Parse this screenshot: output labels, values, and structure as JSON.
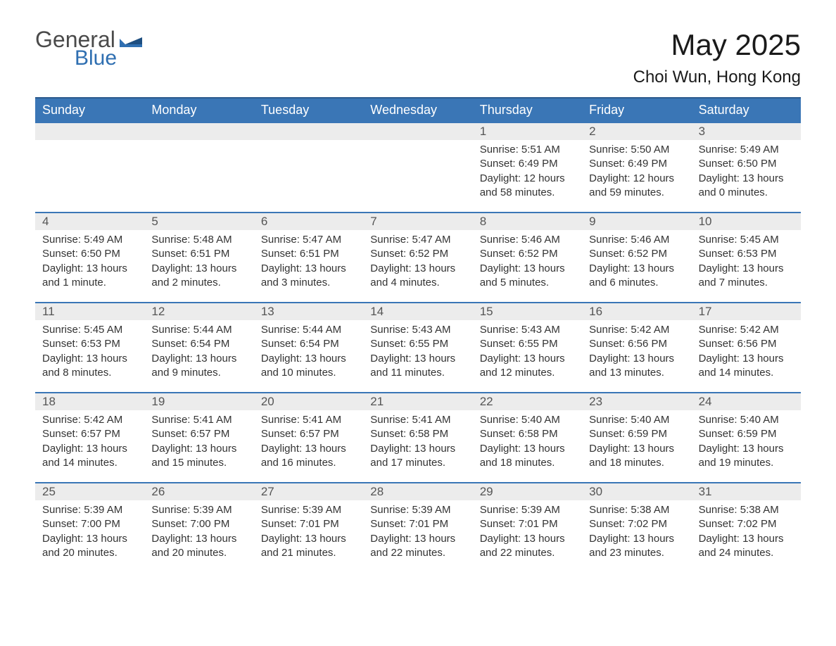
{
  "logo": {
    "general": "General",
    "blue": "Blue"
  },
  "title": "May 2025",
  "location": "Choi Wun, Hong Kong",
  "colors": {
    "header_bg": "#3a76b6",
    "header_border": "#2c5a8e",
    "row_border": "#3a76b6",
    "daynum_bg": "#ececec",
    "text": "#333333",
    "logo_blue": "#2f6fb1"
  },
  "weekdays": [
    "Sunday",
    "Monday",
    "Tuesday",
    "Wednesday",
    "Thursday",
    "Friday",
    "Saturday"
  ],
  "weeks": [
    [
      {
        "n": "",
        "sunrise": "",
        "sunset": "",
        "daylight": ""
      },
      {
        "n": "",
        "sunrise": "",
        "sunset": "",
        "daylight": ""
      },
      {
        "n": "",
        "sunrise": "",
        "sunset": "",
        "daylight": ""
      },
      {
        "n": "",
        "sunrise": "",
        "sunset": "",
        "daylight": ""
      },
      {
        "n": "1",
        "sunrise": "Sunrise: 5:51 AM",
        "sunset": "Sunset: 6:49 PM",
        "daylight": "Daylight: 12 hours and 58 minutes."
      },
      {
        "n": "2",
        "sunrise": "Sunrise: 5:50 AM",
        "sunset": "Sunset: 6:49 PM",
        "daylight": "Daylight: 12 hours and 59 minutes."
      },
      {
        "n": "3",
        "sunrise": "Sunrise: 5:49 AM",
        "sunset": "Sunset: 6:50 PM",
        "daylight": "Daylight: 13 hours and 0 minutes."
      }
    ],
    [
      {
        "n": "4",
        "sunrise": "Sunrise: 5:49 AM",
        "sunset": "Sunset: 6:50 PM",
        "daylight": "Daylight: 13 hours and 1 minute."
      },
      {
        "n": "5",
        "sunrise": "Sunrise: 5:48 AM",
        "sunset": "Sunset: 6:51 PM",
        "daylight": "Daylight: 13 hours and 2 minutes."
      },
      {
        "n": "6",
        "sunrise": "Sunrise: 5:47 AM",
        "sunset": "Sunset: 6:51 PM",
        "daylight": "Daylight: 13 hours and 3 minutes."
      },
      {
        "n": "7",
        "sunrise": "Sunrise: 5:47 AM",
        "sunset": "Sunset: 6:52 PM",
        "daylight": "Daylight: 13 hours and 4 minutes."
      },
      {
        "n": "8",
        "sunrise": "Sunrise: 5:46 AM",
        "sunset": "Sunset: 6:52 PM",
        "daylight": "Daylight: 13 hours and 5 minutes."
      },
      {
        "n": "9",
        "sunrise": "Sunrise: 5:46 AM",
        "sunset": "Sunset: 6:52 PM",
        "daylight": "Daylight: 13 hours and 6 minutes."
      },
      {
        "n": "10",
        "sunrise": "Sunrise: 5:45 AM",
        "sunset": "Sunset: 6:53 PM",
        "daylight": "Daylight: 13 hours and 7 minutes."
      }
    ],
    [
      {
        "n": "11",
        "sunrise": "Sunrise: 5:45 AM",
        "sunset": "Sunset: 6:53 PM",
        "daylight": "Daylight: 13 hours and 8 minutes."
      },
      {
        "n": "12",
        "sunrise": "Sunrise: 5:44 AM",
        "sunset": "Sunset: 6:54 PM",
        "daylight": "Daylight: 13 hours and 9 minutes."
      },
      {
        "n": "13",
        "sunrise": "Sunrise: 5:44 AM",
        "sunset": "Sunset: 6:54 PM",
        "daylight": "Daylight: 13 hours and 10 minutes."
      },
      {
        "n": "14",
        "sunrise": "Sunrise: 5:43 AM",
        "sunset": "Sunset: 6:55 PM",
        "daylight": "Daylight: 13 hours and 11 minutes."
      },
      {
        "n": "15",
        "sunrise": "Sunrise: 5:43 AM",
        "sunset": "Sunset: 6:55 PM",
        "daylight": "Daylight: 13 hours and 12 minutes."
      },
      {
        "n": "16",
        "sunrise": "Sunrise: 5:42 AM",
        "sunset": "Sunset: 6:56 PM",
        "daylight": "Daylight: 13 hours and 13 minutes."
      },
      {
        "n": "17",
        "sunrise": "Sunrise: 5:42 AM",
        "sunset": "Sunset: 6:56 PM",
        "daylight": "Daylight: 13 hours and 14 minutes."
      }
    ],
    [
      {
        "n": "18",
        "sunrise": "Sunrise: 5:42 AM",
        "sunset": "Sunset: 6:57 PM",
        "daylight": "Daylight: 13 hours and 14 minutes."
      },
      {
        "n": "19",
        "sunrise": "Sunrise: 5:41 AM",
        "sunset": "Sunset: 6:57 PM",
        "daylight": "Daylight: 13 hours and 15 minutes."
      },
      {
        "n": "20",
        "sunrise": "Sunrise: 5:41 AM",
        "sunset": "Sunset: 6:57 PM",
        "daylight": "Daylight: 13 hours and 16 minutes."
      },
      {
        "n": "21",
        "sunrise": "Sunrise: 5:41 AM",
        "sunset": "Sunset: 6:58 PM",
        "daylight": "Daylight: 13 hours and 17 minutes."
      },
      {
        "n": "22",
        "sunrise": "Sunrise: 5:40 AM",
        "sunset": "Sunset: 6:58 PM",
        "daylight": "Daylight: 13 hours and 18 minutes."
      },
      {
        "n": "23",
        "sunrise": "Sunrise: 5:40 AM",
        "sunset": "Sunset: 6:59 PM",
        "daylight": "Daylight: 13 hours and 18 minutes."
      },
      {
        "n": "24",
        "sunrise": "Sunrise: 5:40 AM",
        "sunset": "Sunset: 6:59 PM",
        "daylight": "Daylight: 13 hours and 19 minutes."
      }
    ],
    [
      {
        "n": "25",
        "sunrise": "Sunrise: 5:39 AM",
        "sunset": "Sunset: 7:00 PM",
        "daylight": "Daylight: 13 hours and 20 minutes."
      },
      {
        "n": "26",
        "sunrise": "Sunrise: 5:39 AM",
        "sunset": "Sunset: 7:00 PM",
        "daylight": "Daylight: 13 hours and 20 minutes."
      },
      {
        "n": "27",
        "sunrise": "Sunrise: 5:39 AM",
        "sunset": "Sunset: 7:01 PM",
        "daylight": "Daylight: 13 hours and 21 minutes."
      },
      {
        "n": "28",
        "sunrise": "Sunrise: 5:39 AM",
        "sunset": "Sunset: 7:01 PM",
        "daylight": "Daylight: 13 hours and 22 minutes."
      },
      {
        "n": "29",
        "sunrise": "Sunrise: 5:39 AM",
        "sunset": "Sunset: 7:01 PM",
        "daylight": "Daylight: 13 hours and 22 minutes."
      },
      {
        "n": "30",
        "sunrise": "Sunrise: 5:38 AM",
        "sunset": "Sunset: 7:02 PM",
        "daylight": "Daylight: 13 hours and 23 minutes."
      },
      {
        "n": "31",
        "sunrise": "Sunrise: 5:38 AM",
        "sunset": "Sunset: 7:02 PM",
        "daylight": "Daylight: 13 hours and 24 minutes."
      }
    ]
  ]
}
